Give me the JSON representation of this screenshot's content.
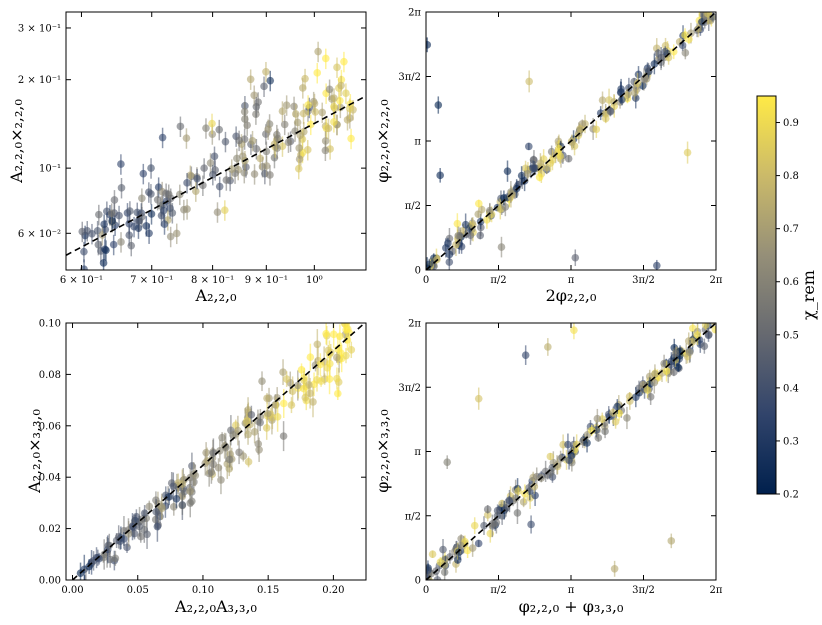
{
  "chart_data": [
    {
      "type": "scatter",
      "id": "a220x220",
      "xscale": "log",
      "yscale": "log",
      "xlim": [
        0.58,
        1.12
      ],
      "ylim": [
        0.045,
        0.34
      ],
      "x_ticks": [
        {
          "value": 0.6,
          "label": "6 × 10⁻¹"
        },
        {
          "value": 0.7,
          "label": "7 × 10⁻¹"
        },
        {
          "value": 0.8,
          "label": "8 × 10⁻¹"
        },
        {
          "value": 0.9,
          "label": "9 × 10⁻¹"
        },
        {
          "value": 1.0,
          "label": "10⁰"
        }
      ],
      "y_ticks": [
        {
          "value": 0.06,
          "label": "6 × 10⁻²"
        },
        {
          "value": 0.1,
          "label": "10⁻¹"
        },
        {
          "value": 0.2,
          "label": "2 × 10⁻¹"
        },
        {
          "value": 0.3,
          "label": "3 × 10⁻¹"
        }
      ],
      "xlabel": "A₂,₂,₀",
      "ylabel": "A₂,₂,₀×₂,₂,₀",
      "fit_line": [
        [
          0.58,
          0.0505
        ],
        [
          1.12,
          0.176
        ]
      ],
      "n_points": 200,
      "point_pattern": "scattered around fit line; χ_rem low (blue) at small x, high (yellow) at large x; cluster of outliers above line"
    },
    {
      "type": "scatter",
      "id": "phi220x220",
      "xscale": "linear",
      "yscale": "linear",
      "xlim": [
        0,
        6.2832
      ],
      "ylim": [
        0,
        6.2832
      ],
      "x_ticks": [
        {
          "value": 0,
          "label": "0"
        },
        {
          "value": 1.5708,
          "label": "π/2"
        },
        {
          "value": 3.1416,
          "label": "π"
        },
        {
          "value": 4.7124,
          "label": "3π/2"
        },
        {
          "value": 6.2832,
          "label": "2π"
        }
      ],
      "y_ticks": [
        {
          "value": 0,
          "label": "0"
        },
        {
          "value": 1.5708,
          "label": "π/2"
        },
        {
          "value": 3.1416,
          "label": "π"
        },
        {
          "value": 4.7124,
          "label": "3π/2"
        },
        {
          "value": 6.2832,
          "label": "2π"
        }
      ],
      "xlabel": "2φ₂,₂,₀",
      "ylabel": "φ₂,₂,₀×₂,₂,₀",
      "fit_line": [
        [
          0,
          0
        ],
        [
          6.2832,
          6.2832
        ]
      ],
      "n_points": 200,
      "point_pattern": "tight along identity line with a few outliers near corners"
    },
    {
      "type": "scatter",
      "id": "a220x330",
      "xscale": "linear",
      "yscale": "linear",
      "xlim": [
        -0.005,
        0.225
      ],
      "ylim": [
        0,
        0.1
      ],
      "x_ticks": [
        {
          "value": 0.0,
          "label": "0.00"
        },
        {
          "value": 0.05,
          "label": "0.05"
        },
        {
          "value": 0.1,
          "label": "0.10"
        },
        {
          "value": 0.15,
          "label": "0.15"
        },
        {
          "value": 0.2,
          "label": "0.20"
        }
      ],
      "y_ticks": [
        {
          "value": 0.0,
          "label": "0.00"
        },
        {
          "value": 0.02,
          "label": "0.02"
        },
        {
          "value": 0.04,
          "label": "0.04"
        },
        {
          "value": 0.06,
          "label": "0.06"
        },
        {
          "value": 0.08,
          "label": "0.08"
        },
        {
          "value": 0.1,
          "label": "0.10"
        }
      ],
      "xlabel": "A₂,₂,₀A₃,₃,₀",
      "ylabel": "A₂,₂,₀×₃,₃,₀",
      "fit_line": [
        [
          0.0,
          0.0
        ],
        [
          0.224,
          0.1
        ]
      ],
      "n_points": 200,
      "point_pattern": "dense cluster near x≈0.1–0.15, yellow points at large x"
    },
    {
      "type": "scatter",
      "id": "phi220x330",
      "xscale": "linear",
      "yscale": "linear",
      "xlim": [
        0,
        6.2832
      ],
      "ylim": [
        0,
        6.2832
      ],
      "x_ticks": [
        {
          "value": 0,
          "label": "0"
        },
        {
          "value": 1.5708,
          "label": "π/2"
        },
        {
          "value": 3.1416,
          "label": "π"
        },
        {
          "value": 4.7124,
          "label": "3π/2"
        },
        {
          "value": 6.2832,
          "label": "2π"
        }
      ],
      "y_ticks": [
        {
          "value": 0,
          "label": "0"
        },
        {
          "value": 1.5708,
          "label": "π/2"
        },
        {
          "value": 3.1416,
          "label": "π"
        },
        {
          "value": 4.7124,
          "label": "3π/2"
        },
        {
          "value": 6.2832,
          "label": "2π"
        }
      ],
      "xlabel": "φ₂,₂,₀ + φ₃,₃,₀",
      "ylabel": "φ₂,₂,₀×₃,₃,₀",
      "fit_line": [
        [
          0,
          0
        ],
        [
          6.2832,
          6.2832
        ]
      ],
      "n_points": 200,
      "point_pattern": "tight along identity line with a few outliers"
    }
  ],
  "colorbar": {
    "label": "χ_rem",
    "range": [
      0.2,
      0.95
    ],
    "ticks": [
      {
        "value": 0.2,
        "label": "0.2"
      },
      {
        "value": 0.3,
        "label": "0.3"
      },
      {
        "value": 0.4,
        "label": "0.4"
      },
      {
        "value": 0.5,
        "label": "0.5"
      },
      {
        "value": 0.6,
        "label": "0.6"
      },
      {
        "value": 0.7,
        "label": "0.7"
      },
      {
        "value": 0.8,
        "label": "0.8"
      },
      {
        "value": 0.9,
        "label": "0.9"
      }
    ],
    "colormap": [
      "#00204d",
      "#31446b",
      "#666970",
      "#958f78",
      "#cbba69",
      "#ffea46"
    ]
  }
}
